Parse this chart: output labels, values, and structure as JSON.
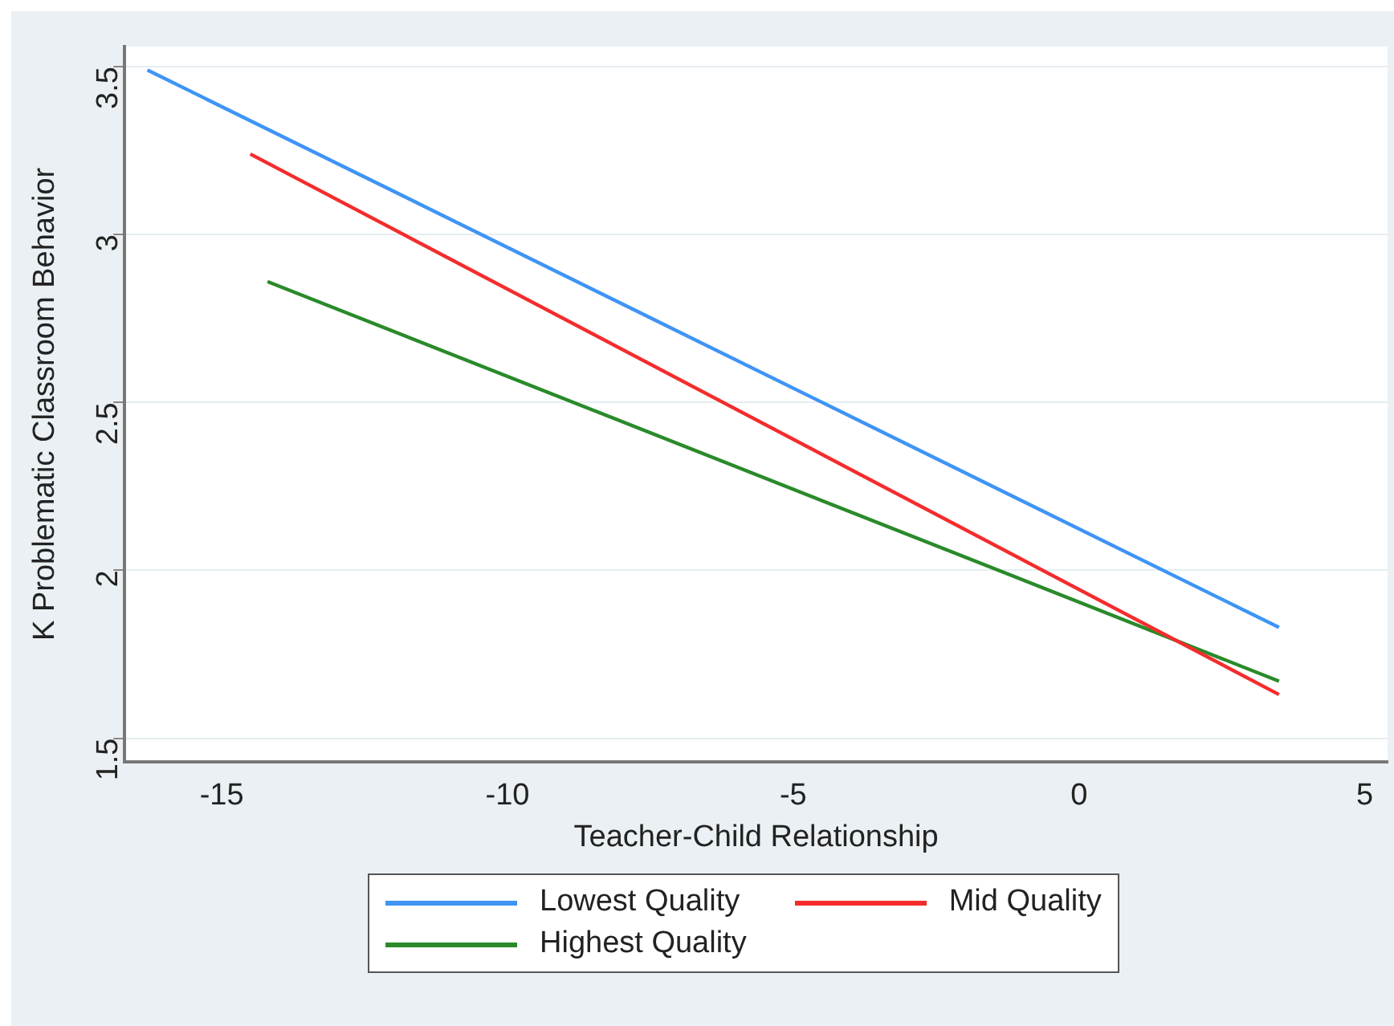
{
  "chart_data": {
    "type": "line",
    "xlabel": "Teacher-Child Relationship",
    "ylabel": "K Problematic Classroom Behavior",
    "xlim": [
      -16.7,
      5.4
    ],
    "xticks": [
      -15,
      -10,
      -5,
      0,
      5
    ],
    "ylim": [
      1.43,
      3.56
    ],
    "yticks": [
      1.5,
      2,
      2.5,
      3,
      3.5
    ],
    "grid": "y",
    "legend": "bottom",
    "marker": "none",
    "line_style": "solid",
    "series": [
      {
        "name": "Lowest Quality",
        "color": "#3f94f5",
        "x": [
          -16.3,
          3.5
        ],
        "values": [
          3.49,
          1.83
        ]
      },
      {
        "name": "Mid Quality",
        "color": "#f42c2c",
        "x": [
          -14.5,
          3.5
        ],
        "values": [
          3.24,
          1.63
        ]
      },
      {
        "name": "Highest Quality",
        "color": "#2a8a2a",
        "x": [
          -14.2,
          3.5
        ],
        "values": [
          2.86,
          1.67
        ]
      }
    ]
  }
}
